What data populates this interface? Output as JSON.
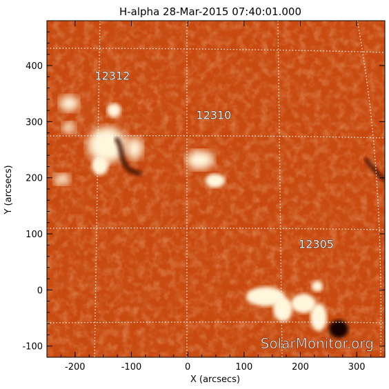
{
  "title": "H-alpha 28-Mar-2015 07:40:01.000",
  "x_axis": {
    "label": "X (arcsecs)",
    "range": [
      -250,
      350
    ],
    "ticks": [
      -200,
      -100,
      0,
      100,
      200,
      300
    ]
  },
  "y_axis": {
    "label": "Y (arcsecs)",
    "range": [
      -120,
      480
    ],
    "ticks": [
      -100,
      0,
      100,
      200,
      300,
      400
    ]
  },
  "active_regions": [
    {
      "label": "12312",
      "x": -165,
      "y": 375
    },
    {
      "label": "12310",
      "x": 15,
      "y": 305
    },
    {
      "label": "12305",
      "x": 197,
      "y": 75
    }
  ],
  "watermark": "SolarMonitor.org",
  "colors": {
    "background": "#c94a10",
    "plage": "#fff6dc",
    "grid": "#ffffff"
  }
}
